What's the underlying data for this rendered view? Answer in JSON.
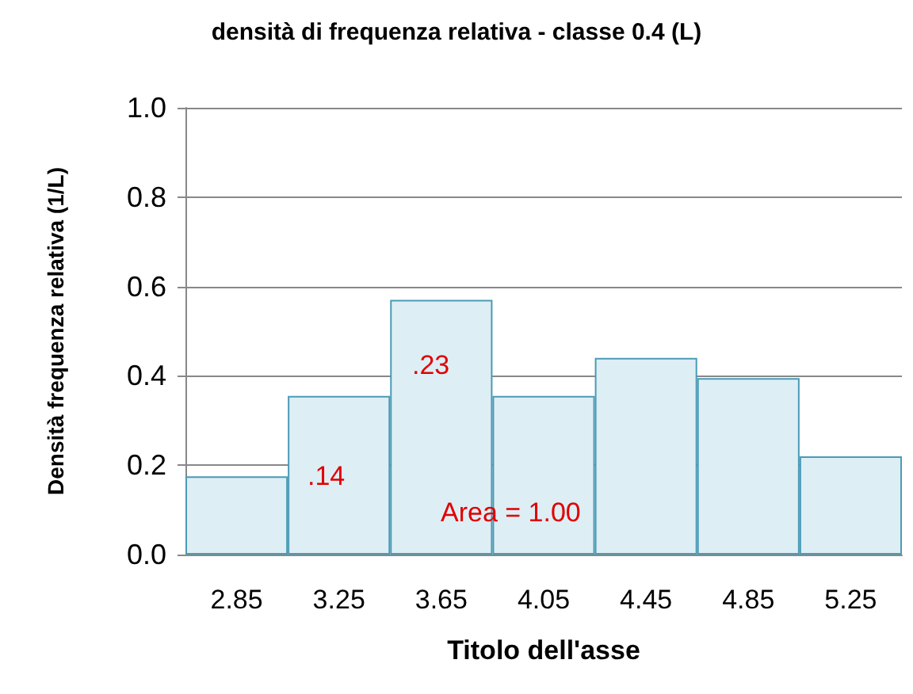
{
  "chart_data": {
    "type": "bar",
    "title": "densità di frequenza relativa - classe 0.4 (L)",
    "xlabel": "Titolo dell'asse",
    "ylabel": "Densità frequenza relativa (1/L)",
    "categories": [
      "2.85",
      "3.25",
      "3.65",
      "4.05",
      "4.45",
      "4.85",
      "5.25"
    ],
    "values": [
      0.175,
      0.355,
      0.57,
      0.355,
      0.44,
      0.395,
      0.22
    ],
    "color": "#deeef5",
    "ylim": [
      0,
      1
    ],
    "yticks": [
      {
        "value": 0,
        "label": "0.0"
      },
      {
        "value": 0.2,
        "label": "0.2"
      },
      {
        "value": 0.4,
        "label": "0.4"
      },
      {
        "value": 0.6,
        "label": "0.6"
      },
      {
        "value": 0.8,
        "label": "0.8"
      },
      {
        "value": 1,
        "label": "1.0"
      }
    ],
    "grid": "y",
    "annotations": [
      ".14",
      ".23",
      "Area = 1.00"
    ]
  }
}
